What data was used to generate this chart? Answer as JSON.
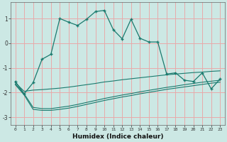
{
  "xlabel": "Humidex (Indice chaleur)",
  "bg_color": "#cce8e4",
  "grid_color": "#e8aaaa",
  "line_color": "#1a7a6e",
  "xlim": [
    -0.5,
    23.5
  ],
  "ylim": [
    -3.3,
    1.65
  ],
  "xticks": [
    0,
    1,
    2,
    3,
    4,
    5,
    6,
    7,
    8,
    9,
    10,
    11,
    12,
    13,
    14,
    15,
    16,
    17,
    18,
    19,
    20,
    21,
    22,
    23
  ],
  "yticks": [
    -3,
    -2,
    -1,
    0,
    1
  ],
  "main_x": [
    0,
    1,
    2,
    3,
    4,
    5,
    6,
    7,
    8,
    9,
    10,
    11,
    12,
    13,
    14,
    15,
    16,
    17,
    18,
    19,
    20,
    21,
    22,
    23
  ],
  "main_y": [
    -1.55,
    -2.05,
    -1.6,
    -0.65,
    -0.45,
    1.0,
    0.85,
    0.72,
    0.97,
    1.28,
    1.33,
    0.55,
    0.18,
    0.97,
    0.2,
    0.05,
    0.05,
    -1.25,
    -1.2,
    -1.5,
    -1.55,
    -1.2,
    -1.85,
    -1.45
  ],
  "line2_x": [
    0,
    1,
    2,
    3,
    4,
    5,
    6,
    7,
    8,
    9,
    10,
    11,
    12,
    13,
    14,
    15,
    16,
    17,
    18,
    19,
    20,
    21,
    22,
    23
  ],
  "line2_y": [
    -1.6,
    -1.95,
    -1.9,
    -1.88,
    -1.85,
    -1.82,
    -1.78,
    -1.73,
    -1.68,
    -1.63,
    -1.57,
    -1.53,
    -1.48,
    -1.44,
    -1.4,
    -1.36,
    -1.32,
    -1.28,
    -1.25,
    -1.22,
    -1.19,
    -1.17,
    -1.14,
    -1.12
  ],
  "line3_x": [
    0,
    1,
    2,
    3,
    4,
    5,
    6,
    7,
    8,
    9,
    10,
    11,
    12,
    13,
    14,
    15,
    16,
    17,
    18,
    19,
    20,
    21,
    22,
    23
  ],
  "line3_y": [
    -1.65,
    -2.05,
    -2.6,
    -2.65,
    -2.65,
    -2.6,
    -2.55,
    -2.48,
    -2.4,
    -2.32,
    -2.24,
    -2.17,
    -2.1,
    -2.04,
    -1.97,
    -1.91,
    -1.85,
    -1.79,
    -1.74,
    -1.68,
    -1.63,
    -1.58,
    -1.54,
    -1.5
  ],
  "line4_x": [
    0,
    1,
    2,
    3,
    4,
    5,
    6,
    7,
    8,
    9,
    10,
    11,
    12,
    13,
    14,
    15,
    16,
    17,
    18,
    19,
    20,
    21,
    22,
    23
  ],
  "line4_y": [
    -1.68,
    -2.1,
    -2.68,
    -2.72,
    -2.72,
    -2.68,
    -2.63,
    -2.56,
    -2.48,
    -2.4,
    -2.32,
    -2.25,
    -2.18,
    -2.12,
    -2.05,
    -1.99,
    -1.93,
    -1.87,
    -1.82,
    -1.77,
    -1.72,
    -1.67,
    -1.62,
    -1.58
  ]
}
